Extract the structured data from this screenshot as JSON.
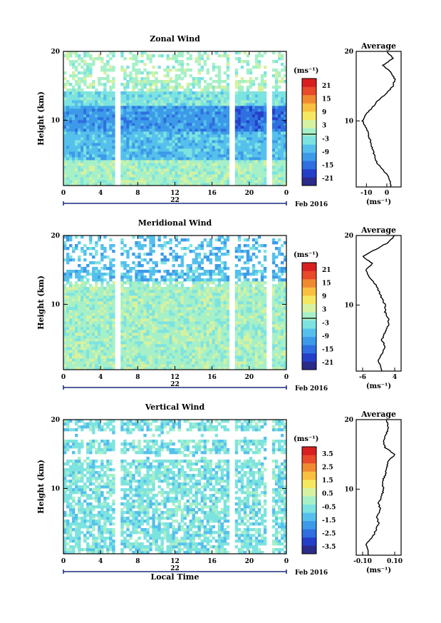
{
  "chart_data": [
    {
      "type": "heatmap",
      "title": "Zonal Wind",
      "ylabel": "Height (km)",
      "xticks": [
        "0",
        "4",
        "8",
        "12",
        "16",
        "20",
        "0"
      ],
      "yticks": [
        "20",
        "10"
      ],
      "date_label": "22",
      "month_label": "Feb 2016",
      "xlim": [
        0,
        24
      ],
      "ylim": [
        0.5,
        20
      ],
      "colorbar_unit": "(ms⁻¹)",
      "colorbar_ticks": [
        "21",
        "15",
        "9",
        "3",
        "-3",
        "-9",
        "-15",
        "-21"
      ],
      "average": {
        "title": "Average",
        "xlabel": "(ms⁻¹)",
        "xticks": [
          "-10",
          "0"
        ],
        "xlim": [
          -15,
          7
        ],
        "profile": [
          [
            0.5,
            2
          ],
          [
            2,
            1
          ],
          [
            3,
            -2
          ],
          [
            4,
            -5
          ],
          [
            5,
            -6
          ],
          [
            6,
            -7
          ],
          [
            7,
            -8
          ],
          [
            8,
            -9
          ],
          [
            9,
            -10
          ],
          [
            10,
            -12
          ],
          [
            11,
            -10
          ],
          [
            12,
            -7
          ],
          [
            13,
            -4
          ],
          [
            14,
            0
          ],
          [
            15,
            3
          ],
          [
            16,
            4
          ],
          [
            17,
            2
          ],
          [
            18,
            -2
          ],
          [
            19,
            3
          ],
          [
            20,
            0
          ]
        ]
      }
    },
    {
      "type": "heatmap",
      "title": "Meridional Wind",
      "ylabel": "Height (km)",
      "xticks": [
        "0",
        "4",
        "8",
        "12",
        "16",
        "20",
        "0"
      ],
      "yticks": [
        "20",
        "10"
      ],
      "date_label": "22",
      "month_label": "Feb 2016",
      "xlim": [
        0,
        24
      ],
      "ylim": [
        0.5,
        20
      ],
      "colorbar_unit": "(ms⁻¹)",
      "colorbar_ticks": [
        "21",
        "15",
        "9",
        "3",
        "-3",
        "-9",
        "-15",
        "-21"
      ],
      "average": {
        "title": "Average",
        "xlabel": "(ms⁻¹)",
        "xticks": [
          "-6",
          "4"
        ],
        "xlim": [
          -8,
          6
        ],
        "profile": [
          [
            0.5,
            0
          ],
          [
            2,
            -1
          ],
          [
            3,
            0
          ],
          [
            4,
            1
          ],
          [
            5,
            0
          ],
          [
            6,
            1
          ],
          [
            7,
            2
          ],
          [
            8,
            2
          ],
          [
            9,
            1
          ],
          [
            10,
            1
          ],
          [
            11,
            0
          ],
          [
            12,
            -1
          ],
          [
            13,
            -2
          ],
          [
            14,
            -4
          ],
          [
            15,
            -5
          ],
          [
            16,
            -3
          ],
          [
            17,
            -6
          ],
          [
            18,
            -2
          ],
          [
            19,
            2
          ],
          [
            20,
            4
          ]
        ]
      }
    },
    {
      "type": "heatmap",
      "title": "Vertical Wind",
      "ylabel": "Height (km)",
      "xlabel": "Local Time",
      "xticks": [
        "0",
        "4",
        "8",
        "12",
        "16",
        "20",
        "0"
      ],
      "yticks": [
        "20",
        "10"
      ],
      "date_label": "22",
      "month_label": "Feb 2016",
      "xlim": [
        0,
        24
      ],
      "ylim": [
        0.5,
        20
      ],
      "colorbar_unit": "(ms⁻¹)",
      "colorbar_ticks": [
        "3.5",
        "2.5",
        "1.5",
        "0.5",
        "-0.5",
        "-1.5",
        "-2.5",
        "-3.5"
      ],
      "average": {
        "title": "Average",
        "xlabel": "(ms⁻¹)",
        "xticks": [
          "-0.10",
          "0.10"
        ],
        "xlim": [
          -0.14,
          0.14
        ],
        "profile": [
          [
            0.5,
            -0.06
          ],
          [
            2,
            -0.08
          ],
          [
            3,
            -0.04
          ],
          [
            4,
            -0.02
          ],
          [
            5,
            0.0
          ],
          [
            6,
            -0.01
          ],
          [
            7,
            0.01
          ],
          [
            8,
            0.0
          ],
          [
            9,
            0.02
          ],
          [
            10,
            0.03
          ],
          [
            11,
            0.02
          ],
          [
            12,
            0.04
          ],
          [
            13,
            0.05
          ],
          [
            14,
            0.06
          ],
          [
            15,
            0.1
          ],
          [
            16,
            0.04
          ],
          [
            17,
            0.03
          ],
          [
            18,
            0.05
          ],
          [
            19,
            0.06
          ],
          [
            20,
            0.05
          ]
        ]
      }
    }
  ],
  "colors": {
    "scale": [
      "#2b2b8a",
      "#2440c8",
      "#2f6fe0",
      "#3d9ae8",
      "#56c0ec",
      "#7de3e0",
      "#a6f0c8",
      "#d6f2a0",
      "#f5e860",
      "#f7c040",
      "#f08a30",
      "#e84a2a",
      "#d81f1f"
    ]
  }
}
